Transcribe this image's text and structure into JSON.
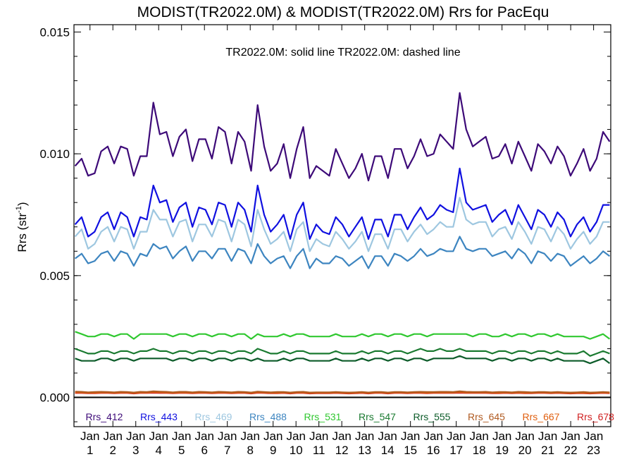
{
  "chart_data": {
    "type": "line",
    "title": "MODIST(TR2022.0M) & MODIST(TR2022.0M)  Rrs for PacEqu",
    "annotation": "TR2022.0M: solid line   TR2022.0M: dashed line",
    "ylabel_main": "Rrs (str",
    "ylabel_sup": "-1",
    "ylabel_close": ")",
    "ylim": [
      -0.0012,
      0.0153
    ],
    "yticks": [
      "0.000",
      "0.005",
      "0.010",
      "0.015"
    ],
    "ytick_values": [
      0.0,
      0.005,
      0.01,
      0.015
    ],
    "xlim": [
      0.3,
      23.75
    ],
    "xtick_month": "Jan",
    "xtick_years": [
      "1",
      "2",
      "3",
      "4",
      "5",
      "6",
      "7",
      "8",
      "9",
      "10",
      "11",
      "12",
      "13",
      "14",
      "15",
      "16",
      "17",
      "18",
      "19",
      "20",
      "21",
      "22",
      "23"
    ],
    "grid": false,
    "legend_position": "bottom-inside",
    "series": [
      {
        "name": "Rrs_412",
        "color": "#3d0a78",
        "values": [
          0.0095,
          0.0098,
          0.0091,
          0.0092,
          0.0101,
          0.0103,
          0.0096,
          0.0103,
          0.0102,
          0.0091,
          0.0099,
          0.0099,
          0.0121,
          0.0108,
          0.0109,
          0.0099,
          0.0107,
          0.011,
          0.0097,
          0.0106,
          0.0106,
          0.0098,
          0.0111,
          0.0109,
          0.0096,
          0.0109,
          0.0105,
          0.0093,
          0.012,
          0.0103,
          0.0093,
          0.0096,
          0.0104,
          0.009,
          0.0102,
          0.0111,
          0.009,
          0.0095,
          0.0093,
          0.0091,
          0.0102,
          0.0096,
          0.009,
          0.0094,
          0.01,
          0.0089,
          0.0099,
          0.0099,
          0.009,
          0.0102,
          0.0102,
          0.0094,
          0.0099,
          0.0106,
          0.0099,
          0.01,
          0.0108,
          0.0105,
          0.0102,
          0.0125,
          0.011,
          0.0103,
          0.0105,
          0.0107,
          0.0098,
          0.0099,
          0.0104,
          0.0096,
          0.0105,
          0.0099,
          0.0093,
          0.0104,
          0.0101,
          0.0096,
          0.0103,
          0.0099,
          0.0091,
          0.0096,
          0.0102,
          0.0093,
          0.0098,
          0.0109,
          0.0105
        ]
      },
      {
        "name": "Rrs_443",
        "color": "#1010e0",
        "values": [
          0.0071,
          0.0074,
          0.0066,
          0.0068,
          0.0074,
          0.0076,
          0.0069,
          0.0076,
          0.0074,
          0.0066,
          0.0074,
          0.0073,
          0.0087,
          0.008,
          0.0081,
          0.0072,
          0.0078,
          0.008,
          0.007,
          0.0078,
          0.0077,
          0.0071,
          0.008,
          0.0079,
          0.007,
          0.008,
          0.0077,
          0.0068,
          0.0087,
          0.0075,
          0.0068,
          0.0071,
          0.0075,
          0.0065,
          0.0075,
          0.008,
          0.0065,
          0.0071,
          0.0068,
          0.0067,
          0.0074,
          0.0071,
          0.0066,
          0.007,
          0.0074,
          0.0065,
          0.0073,
          0.0073,
          0.0066,
          0.0075,
          0.0075,
          0.0069,
          0.0074,
          0.0078,
          0.0073,
          0.0075,
          0.0079,
          0.0077,
          0.0076,
          0.0094,
          0.008,
          0.0077,
          0.0078,
          0.0079,
          0.0072,
          0.0075,
          0.0077,
          0.0071,
          0.0079,
          0.0074,
          0.0069,
          0.0077,
          0.0075,
          0.007,
          0.0076,
          0.0073,
          0.0066,
          0.0071,
          0.0074,
          0.0068,
          0.0072,
          0.0079,
          0.0079
        ]
      },
      {
        "name": "Rrs_469",
        "color": "#9ec7e0",
        "values": [
          0.0066,
          0.0069,
          0.0061,
          0.0063,
          0.0068,
          0.007,
          0.0064,
          0.007,
          0.0069,
          0.0061,
          0.0068,
          0.0068,
          0.0077,
          0.0073,
          0.0073,
          0.0066,
          0.0072,
          0.0073,
          0.0064,
          0.0071,
          0.0071,
          0.0066,
          0.0073,
          0.0072,
          0.0064,
          0.0073,
          0.0071,
          0.0062,
          0.0077,
          0.0069,
          0.0063,
          0.0065,
          0.0068,
          0.006,
          0.0069,
          0.0072,
          0.006,
          0.0065,
          0.0063,
          0.0062,
          0.0068,
          0.0065,
          0.0061,
          0.0064,
          0.0068,
          0.006,
          0.0067,
          0.0067,
          0.0061,
          0.0069,
          0.0069,
          0.0064,
          0.0068,
          0.0071,
          0.0067,
          0.0069,
          0.0072,
          0.007,
          0.007,
          0.0082,
          0.0073,
          0.0071,
          0.0072,
          0.0072,
          0.0066,
          0.0069,
          0.007,
          0.0065,
          0.0072,
          0.0068,
          0.0063,
          0.007,
          0.0069,
          0.0064,
          0.007,
          0.0067,
          0.0061,
          0.0065,
          0.0068,
          0.0063,
          0.0066,
          0.0072,
          0.0072
        ]
      },
      {
        "name": "Rrs_488",
        "color": "#3d85c0",
        "values": [
          0.0057,
          0.0059,
          0.0055,
          0.0056,
          0.0059,
          0.006,
          0.0056,
          0.006,
          0.0059,
          0.0054,
          0.0059,
          0.0058,
          0.0063,
          0.0061,
          0.0062,
          0.0057,
          0.006,
          0.0062,
          0.0056,
          0.006,
          0.006,
          0.0057,
          0.0061,
          0.0061,
          0.0056,
          0.0061,
          0.006,
          0.0055,
          0.0063,
          0.0058,
          0.0055,
          0.0057,
          0.0058,
          0.0053,
          0.0058,
          0.0061,
          0.0053,
          0.0057,
          0.0055,
          0.0055,
          0.0058,
          0.0057,
          0.0054,
          0.0056,
          0.0058,
          0.0053,
          0.0058,
          0.0058,
          0.0054,
          0.0059,
          0.0058,
          0.0056,
          0.0058,
          0.0061,
          0.0058,
          0.0059,
          0.0061,
          0.006,
          0.006,
          0.0066,
          0.0061,
          0.006,
          0.0061,
          0.0061,
          0.0058,
          0.0059,
          0.006,
          0.0057,
          0.0061,
          0.0059,
          0.0055,
          0.006,
          0.0059,
          0.0056,
          0.0059,
          0.0058,
          0.0054,
          0.0056,
          0.0058,
          0.0055,
          0.0057,
          0.006,
          0.0058
        ]
      },
      {
        "name": "Rrs_531",
        "color": "#30c830",
        "values": [
          0.0027,
          0.0026,
          0.0025,
          0.0025,
          0.0026,
          0.0026,
          0.0025,
          0.0026,
          0.0026,
          0.0024,
          0.0026,
          0.0026,
          0.0026,
          0.0026,
          0.0026,
          0.0025,
          0.0026,
          0.0026,
          0.0025,
          0.0026,
          0.0026,
          0.0025,
          0.0026,
          0.0026,
          0.0025,
          0.0026,
          0.0026,
          0.0024,
          0.0026,
          0.0025,
          0.0025,
          0.0025,
          0.0026,
          0.0025,
          0.0026,
          0.0026,
          0.0025,
          0.0025,
          0.0025,
          0.0025,
          0.0026,
          0.0025,
          0.0025,
          0.0025,
          0.0026,
          0.0025,
          0.0026,
          0.0026,
          0.0025,
          0.0026,
          0.0026,
          0.0025,
          0.0026,
          0.0026,
          0.0025,
          0.0026,
          0.0026,
          0.0026,
          0.0026,
          0.0026,
          0.0026,
          0.0025,
          0.0026,
          0.0026,
          0.0025,
          0.0025,
          0.0026,
          0.0025,
          0.0026,
          0.0026,
          0.0025,
          0.0026,
          0.0026,
          0.0025,
          0.0026,
          0.0025,
          0.0025,
          0.0025,
          0.0025,
          0.0024,
          0.0025,
          0.0026,
          0.0024
        ]
      },
      {
        "name": "Rrs_547",
        "color": "#1a7a30",
        "values": [
          0.002,
          0.0019,
          0.0018,
          0.0018,
          0.0019,
          0.0019,
          0.0018,
          0.0019,
          0.0019,
          0.0018,
          0.0019,
          0.0019,
          0.002,
          0.0019,
          0.0019,
          0.0018,
          0.0019,
          0.0019,
          0.0018,
          0.0019,
          0.0019,
          0.0018,
          0.0019,
          0.0019,
          0.0018,
          0.0019,
          0.0019,
          0.0018,
          0.002,
          0.0019,
          0.0018,
          0.0018,
          0.0019,
          0.0018,
          0.0019,
          0.0019,
          0.0018,
          0.0018,
          0.0018,
          0.0018,
          0.0019,
          0.0018,
          0.0018,
          0.0018,
          0.0019,
          0.0018,
          0.0019,
          0.0019,
          0.0018,
          0.0019,
          0.0019,
          0.0018,
          0.0019,
          0.002,
          0.0019,
          0.0019,
          0.002,
          0.0019,
          0.0019,
          0.002,
          0.0019,
          0.0019,
          0.0019,
          0.0019,
          0.0018,
          0.0019,
          0.0019,
          0.0018,
          0.0019,
          0.0019,
          0.0018,
          0.0019,
          0.0019,
          0.0018,
          0.0019,
          0.0018,
          0.0018,
          0.0018,
          0.0019,
          0.0017,
          0.0018,
          0.0019,
          0.0018
        ]
      },
      {
        "name": "Rrs_555",
        "color": "#0d5c2a",
        "values": [
          0.0016,
          0.0015,
          0.0015,
          0.0015,
          0.0016,
          0.0016,
          0.0015,
          0.0016,
          0.0016,
          0.0015,
          0.0016,
          0.0016,
          0.0016,
          0.0016,
          0.0016,
          0.0015,
          0.0016,
          0.0016,
          0.0015,
          0.0016,
          0.0016,
          0.0015,
          0.0016,
          0.0016,
          0.0015,
          0.0016,
          0.0016,
          0.0015,
          0.0016,
          0.0015,
          0.0015,
          0.0015,
          0.0016,
          0.0015,
          0.0016,
          0.0016,
          0.0015,
          0.0015,
          0.0015,
          0.0015,
          0.0016,
          0.0015,
          0.0015,
          0.0015,
          0.0016,
          0.0015,
          0.0016,
          0.0016,
          0.0015,
          0.0016,
          0.0016,
          0.0015,
          0.0016,
          0.0016,
          0.0015,
          0.0016,
          0.0016,
          0.0016,
          0.0016,
          0.0017,
          0.0016,
          0.0016,
          0.0016,
          0.0016,
          0.0015,
          0.0016,
          0.0016,
          0.0015,
          0.0016,
          0.0016,
          0.0015,
          0.0016,
          0.0016,
          0.0015,
          0.0016,
          0.0015,
          0.0015,
          0.0015,
          0.0015,
          0.0014,
          0.0015,
          0.0016,
          0.0014
        ]
      },
      {
        "name": "Rrs_645",
        "color": "#b05a20",
        "values": [
          0.00024,
          0.00023,
          0.00021,
          0.00022,
          0.00023,
          0.00022,
          0.00021,
          0.00023,
          0.00022,
          0.0002,
          0.00023,
          0.00022,
          0.00025,
          0.00024,
          0.00023,
          0.00021,
          0.00023,
          0.00023,
          0.00021,
          0.00023,
          0.00022,
          0.00021,
          0.00023,
          0.00022,
          0.00021,
          0.00023,
          0.00022,
          0.0002,
          0.00024,
          0.00022,
          0.00021,
          0.00022,
          0.00022,
          0.0002,
          0.00022,
          0.00023,
          0.0002,
          0.00021,
          0.00021,
          0.00021,
          0.00022,
          0.00021,
          0.0002,
          0.00021,
          0.00022,
          0.0002,
          0.00022,
          0.00022,
          0.0002,
          0.00022,
          0.00022,
          0.00021,
          0.00022,
          0.00023,
          0.00022,
          0.00022,
          0.00023,
          0.00023,
          0.00022,
          0.00025,
          0.00023,
          0.00022,
          0.00022,
          0.00023,
          0.00021,
          0.00022,
          0.00022,
          0.00021,
          0.00023,
          0.00022,
          0.00021,
          0.00022,
          0.00022,
          0.00021,
          0.00022,
          0.00021,
          0.0002,
          0.00021,
          0.00022,
          0.0002,
          0.00021,
          0.00022,
          0.00021
        ]
      },
      {
        "name": "Rrs_667",
        "color": "#e06010",
        "values": [
          0.00021,
          0.0002,
          0.00019,
          0.00019,
          0.0002,
          0.0002,
          0.00019,
          0.0002,
          0.0002,
          0.00018,
          0.0002,
          0.0002,
          0.00022,
          0.00021,
          0.0002,
          0.00019,
          0.0002,
          0.0002,
          0.00019,
          0.0002,
          0.0002,
          0.00019,
          0.0002,
          0.0002,
          0.00019,
          0.0002,
          0.0002,
          0.00018,
          0.00021,
          0.0002,
          0.00019,
          0.00019,
          0.0002,
          0.00018,
          0.0002,
          0.0002,
          0.00018,
          0.00019,
          0.00019,
          0.00019,
          0.0002,
          0.00019,
          0.00018,
          0.00019,
          0.0002,
          0.00018,
          0.0002,
          0.0002,
          0.00018,
          0.0002,
          0.0002,
          0.00019,
          0.0002,
          0.0002,
          0.00019,
          0.0002,
          0.0002,
          0.0002,
          0.0002,
          0.00022,
          0.0002,
          0.0002,
          0.0002,
          0.0002,
          0.00019,
          0.00019,
          0.0002,
          0.00019,
          0.0002,
          0.00019,
          0.00019,
          0.0002,
          0.0002,
          0.00019,
          0.0002,
          0.00019,
          0.00018,
          0.00019,
          0.00019,
          0.00018,
          0.00019,
          0.0002,
          0.00019
        ]
      },
      {
        "name": "Rrs_678",
        "color": "#d02020",
        "values": [
          0.00018,
          0.00018,
          0.00017,
          0.00017,
          0.00018,
          0.00018,
          0.00017,
          0.00018,
          0.00018,
          0.00016,
          0.00018,
          0.00018,
          0.00019,
          0.00018,
          0.00018,
          0.00017,
          0.00018,
          0.00018,
          0.00017,
          0.00018,
          0.00018,
          0.00017,
          0.00018,
          0.00018,
          0.00017,
          0.00018,
          0.00018,
          0.00016,
          0.00019,
          0.00018,
          0.00017,
          0.00017,
          0.00018,
          0.00016,
          0.00018,
          0.00018,
          0.00016,
          0.00017,
          0.00017,
          0.00017,
          0.00018,
          0.00017,
          0.00016,
          0.00017,
          0.00018,
          0.00016,
          0.00018,
          0.00018,
          0.00016,
          0.00018,
          0.00018,
          0.00017,
          0.00018,
          0.00018,
          0.00017,
          0.00018,
          0.00018,
          0.00018,
          0.00018,
          0.00019,
          0.00018,
          0.00018,
          0.00018,
          0.00018,
          0.00017,
          0.00017,
          0.00018,
          0.00017,
          0.00018,
          0.00017,
          0.00017,
          0.00018,
          0.00018,
          0.00017,
          0.00018,
          0.00017,
          0.00016,
          0.00017,
          0.00017,
          0.00016,
          0.00017,
          0.00018,
          0.00017
        ]
      }
    ],
    "baseline_color": "#000000",
    "baseline_value": 0.0
  }
}
